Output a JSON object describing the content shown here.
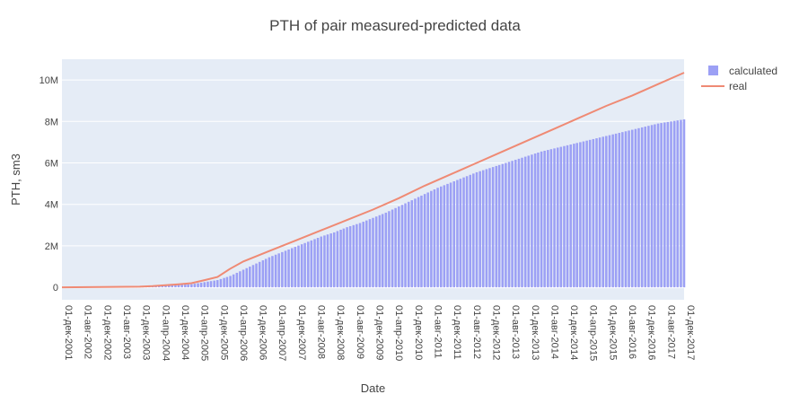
{
  "chart_data": {
    "type": "bar+line",
    "title": "PTH of pair measured-predicted data",
    "xlabel": "Date",
    "ylabel": "PTH, sm3",
    "y_ticks": [
      {
        "value": 0,
        "label": "0"
      },
      {
        "value": 2000000,
        "label": "2M"
      },
      {
        "value": 4000000,
        "label": "4M"
      },
      {
        "value": 6000000,
        "label": "6M"
      },
      {
        "value": 8000000,
        "label": "8M"
      },
      {
        "value": 10000000,
        "label": "10M"
      }
    ],
    "ylim": [
      -600000,
      11000000
    ],
    "x_start": "2001-12-01",
    "x_end": "2017-12-01",
    "x_tick_labels": [
      "01-дек-2001",
      "01-авг-2002",
      "01-дек-2002",
      "01-авг-2003",
      "01-дек-2003",
      "01-апр-2004",
      "01-дек-2004",
      "01-апр-2005",
      "01-дек-2005",
      "01-апр-2006",
      "01-дек-2006",
      "01-апр-2007",
      "01-дек-2007",
      "01-авг-2008",
      "01-дек-2008",
      "01-авг-2009",
      "01-дек-2009",
      "01-апр-2010",
      "01-дек-2010",
      "01-авг-2011",
      "01-дек-2011",
      "01-авг-2012",
      "01-дек-2012",
      "01-авг-2013",
      "01-дек-2013",
      "01-авг-2014",
      "01-дек-2014",
      "01-апр-2015",
      "01-дек-2015",
      "01-авг-2016",
      "01-дек-2016",
      "01-авг-2017",
      "01-дек-2017"
    ],
    "series": [
      {
        "name": "calculated",
        "kind": "bar",
        "color": "#9ca0f5",
        "points": [
          [
            "2001-12-01",
            0
          ],
          [
            "2003-12-01",
            20000
          ],
          [
            "2004-04-01",
            50000
          ],
          [
            "2004-08-01",
            100000
          ],
          [
            "2004-12-01",
            120000
          ],
          [
            "2005-04-01",
            150000
          ],
          [
            "2005-08-01",
            250000
          ],
          [
            "2005-12-01",
            350000
          ],
          [
            "2006-04-01",
            550000
          ],
          [
            "2006-08-01",
            850000
          ],
          [
            "2006-12-01",
            1150000
          ],
          [
            "2007-04-01",
            1450000
          ],
          [
            "2007-08-01",
            1700000
          ],
          [
            "2007-12-01",
            1950000
          ],
          [
            "2008-04-01",
            2200000
          ],
          [
            "2008-08-01",
            2450000
          ],
          [
            "2008-12-01",
            2650000
          ],
          [
            "2009-04-01",
            2900000
          ],
          [
            "2009-08-01",
            3100000
          ],
          [
            "2009-12-01",
            3350000
          ],
          [
            "2010-04-01",
            3600000
          ],
          [
            "2010-08-01",
            3900000
          ],
          [
            "2010-12-01",
            4200000
          ],
          [
            "2011-04-01",
            4500000
          ],
          [
            "2011-08-01",
            4800000
          ],
          [
            "2011-12-01",
            5050000
          ],
          [
            "2012-04-01",
            5300000
          ],
          [
            "2012-08-01",
            5550000
          ],
          [
            "2012-12-01",
            5750000
          ],
          [
            "2013-04-01",
            5950000
          ],
          [
            "2013-08-01",
            6150000
          ],
          [
            "2013-12-01",
            6350000
          ],
          [
            "2014-04-01",
            6550000
          ],
          [
            "2014-08-01",
            6700000
          ],
          [
            "2014-12-01",
            6850000
          ],
          [
            "2015-04-01",
            7000000
          ],
          [
            "2015-08-01",
            7150000
          ],
          [
            "2015-12-01",
            7300000
          ],
          [
            "2016-04-01",
            7450000
          ],
          [
            "2016-08-01",
            7600000
          ],
          [
            "2016-12-01",
            7750000
          ],
          [
            "2017-04-01",
            7900000
          ],
          [
            "2017-08-01",
            8000000
          ],
          [
            "2017-12-01",
            8100000
          ]
        ]
      },
      {
        "name": "real",
        "kind": "line",
        "color": "#ef8a74",
        "points": [
          [
            "2001-12-01",
            0
          ],
          [
            "2003-12-01",
            30000
          ],
          [
            "2004-04-01",
            60000
          ],
          [
            "2004-12-01",
            150000
          ],
          [
            "2005-04-01",
            200000
          ],
          [
            "2005-08-01",
            350000
          ],
          [
            "2005-12-01",
            500000
          ],
          [
            "2006-04-01",
            900000
          ],
          [
            "2006-08-01",
            1250000
          ],
          [
            "2007-04-01",
            1750000
          ],
          [
            "2007-12-01",
            2250000
          ],
          [
            "2008-08-01",
            2750000
          ],
          [
            "2009-04-01",
            3250000
          ],
          [
            "2009-12-01",
            3750000
          ],
          [
            "2010-08-01",
            4300000
          ],
          [
            "2011-04-01",
            4900000
          ],
          [
            "2011-12-01",
            5450000
          ],
          [
            "2012-08-01",
            6000000
          ],
          [
            "2013-04-01",
            6550000
          ],
          [
            "2013-12-01",
            7100000
          ],
          [
            "2014-08-01",
            7650000
          ],
          [
            "2015-04-01",
            8200000
          ],
          [
            "2015-12-01",
            8750000
          ],
          [
            "2016-08-01",
            9250000
          ],
          [
            "2017-04-01",
            9800000
          ],
          [
            "2017-12-01",
            10350000
          ]
        ]
      }
    ],
    "legend_position": "top-right",
    "grid": true,
    "plot_bgcolor": "#e5ecf6"
  }
}
